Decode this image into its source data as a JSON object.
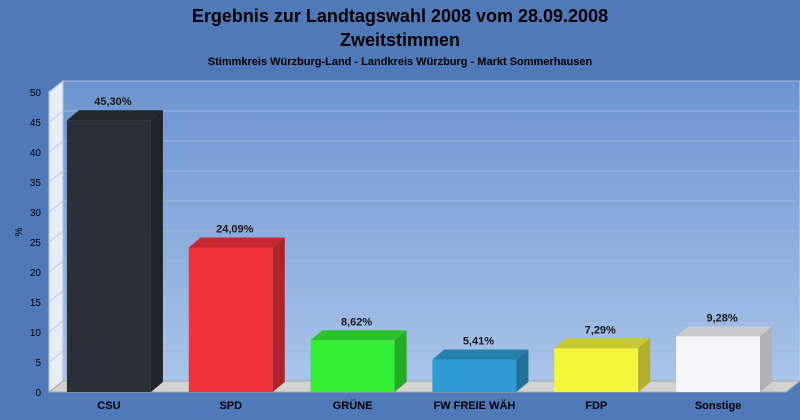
{
  "chart_data": {
    "type": "bar",
    "title": "Ergebnis zur Landtagswahl 2008 vom 28.09.2008",
    "title_line2": "Zweitstimmen",
    "subtitle": "Stimmkreis Würzburg-Land - Landkreis Würzburg - Markt Sommerhausen",
    "ylabel": "%",
    "xlabel": "",
    "ylim": [
      0,
      50
    ],
    "yticks": [
      0,
      5,
      10,
      15,
      20,
      25,
      30,
      35,
      40,
      45,
      50
    ],
    "grid": true,
    "categories": [
      "CSU",
      "SPD",
      "GRÜNE",
      "FW FREIE WÄH",
      "FDP",
      "Sonstige"
    ],
    "values": [
      45.3,
      24.09,
      8.62,
      5.41,
      7.29,
      9.28
    ],
    "value_labels": [
      "45,30%",
      "24,09%",
      "8,62%",
      "5,41%",
      "7,29%",
      "9,28%"
    ],
    "colors": [
      "#2b2f38",
      "#f0303a",
      "#33ee33",
      "#2f9bd4",
      "#f5f53a",
      "#f4f6fb"
    ]
  }
}
